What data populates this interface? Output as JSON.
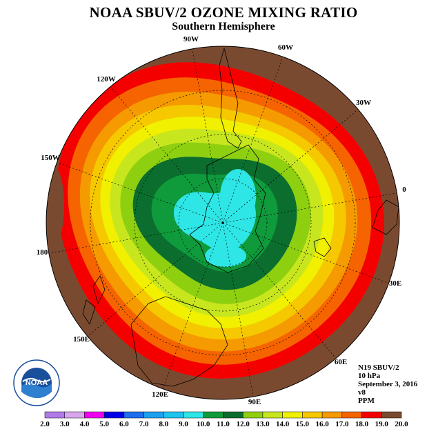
{
  "chart_data": {
    "type": "heatmap",
    "title": "NOAA SBUV/2 OZONE MIXING RATIO",
    "subtitle": "Southern Hemisphere",
    "projection": "south-polar-stereographic",
    "longitude_labels": [
      "90W",
      "60W",
      "30W",
      "0",
      "30E",
      "60E",
      "90E",
      "120E",
      "150E",
      "180",
      "150W",
      "120W"
    ],
    "colorbar": {
      "unit": "PPM",
      "ticks": [
        "2.0",
        "3.0",
        "4.0",
        "5.0",
        "6.0",
        "7.0",
        "8.0",
        "9.0",
        "10.0",
        "11.0",
        "12.0",
        "13.0",
        "14.0",
        "15.0",
        "16.0",
        "17.0",
        "18.0",
        "19.0",
        "20.0"
      ],
      "colors": [
        "#b07ae8",
        "#d9a6ee",
        "#f000f0",
        "#0000e8",
        "#1e6ef0",
        "#1ea0f0",
        "#1ec3ee",
        "#2ee6e6",
        "#0f9a3c",
        "#0b6e2e",
        "#8ed010",
        "#c8e61e",
        "#f0f000",
        "#f5c800",
        "#f59a00",
        "#f56400",
        "#f50000",
        "#7a4a30"
      ]
    },
    "field_summary": {
      "pole_region_min_ppm": 9.0,
      "polar_vortex_range_ppm": [
        9.0,
        12.0
      ],
      "midlatitude_range_ppm": [
        12.0,
        17.0
      ],
      "outer_edge_max_ppm": 19.0,
      "maximum_near_150W_ppm": 20.0
    }
  },
  "info": {
    "satellite": "N19 SBUV/2",
    "level": "10 hPa",
    "date": "September 3, 2016",
    "version": "v8",
    "unit": "PPM"
  },
  "logo_text": "NOAA"
}
